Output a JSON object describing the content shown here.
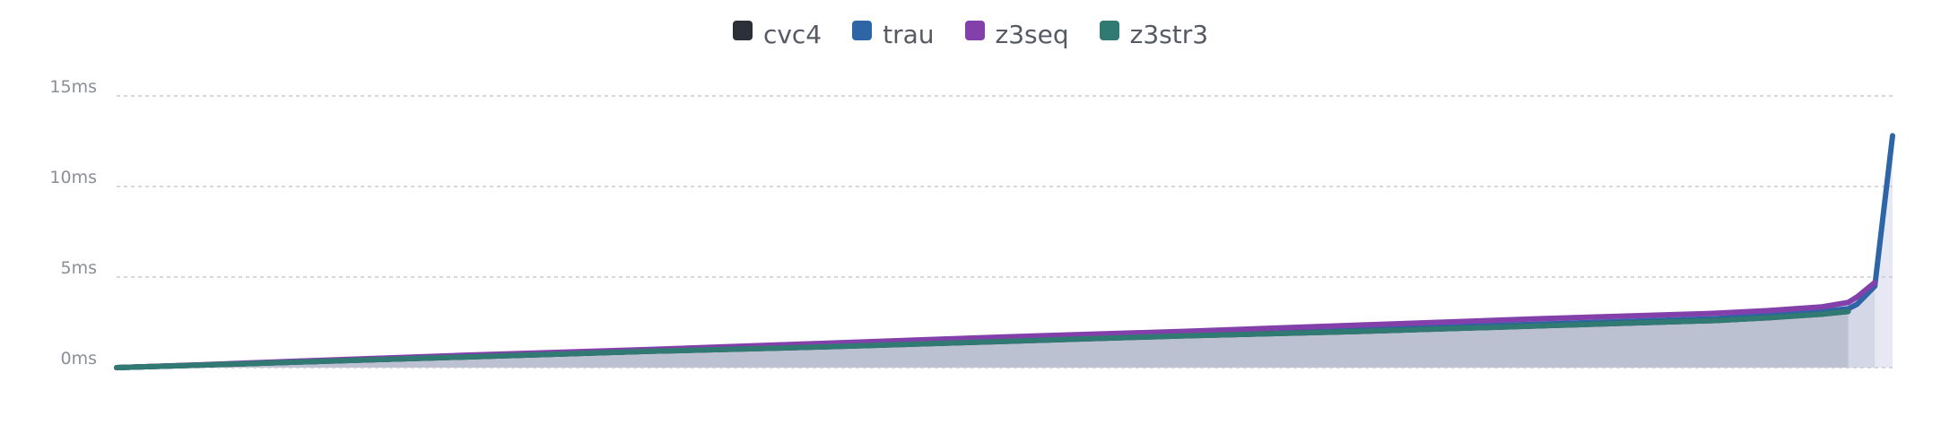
{
  "chart_data": {
    "type": "area",
    "title": "",
    "xlabel": "",
    "ylabel": "",
    "ylim": [
      0,
      15
    ],
    "yticks": [
      {
        "value": 0,
        "label": "0ms"
      },
      {
        "value": 5,
        "label": "5ms"
      },
      {
        "value": 10,
        "label": "10ms"
      },
      {
        "value": 15,
        "label": "15ms"
      }
    ],
    "grid": true,
    "legend_position": "top",
    "x": [
      0,
      0.05,
      0.1,
      0.2,
      0.3,
      0.4,
      0.5,
      0.6,
      0.7,
      0.8,
      0.9,
      0.93,
      0.96,
      0.975,
      0.98,
      0.99,
      1.0
    ],
    "series": [
      {
        "name": "cvc4",
        "color": "#2a2f38",
        "values": [
          0.0,
          0.15,
          0.3,
          0.6,
          0.9,
          1.15,
          1.45,
          1.75,
          2.0,
          2.3,
          2.6,
          2.75,
          2.95,
          3.1,
          null,
          null,
          null
        ]
      },
      {
        "name": "trau",
        "color": "#2e65a7",
        "values": [
          0.0,
          0.15,
          0.3,
          0.6,
          0.9,
          1.2,
          1.5,
          1.8,
          2.1,
          2.4,
          2.7,
          2.9,
          3.1,
          3.25,
          3.5,
          4.5,
          12.8
        ]
      },
      {
        "name": "z3seq",
        "color": "#8440aa",
        "values": [
          0.0,
          0.17,
          0.35,
          0.7,
          1.0,
          1.35,
          1.7,
          2.0,
          2.35,
          2.7,
          3.0,
          3.15,
          3.35,
          3.6,
          3.9,
          4.7,
          null
        ]
      },
      {
        "name": "z3str3",
        "color": "#317a74",
        "values": [
          0.0,
          0.15,
          0.3,
          0.6,
          0.9,
          1.15,
          1.45,
          1.75,
          2.0,
          2.3,
          2.6,
          2.75,
          2.95,
          3.1,
          null,
          null,
          null
        ]
      }
    ]
  }
}
